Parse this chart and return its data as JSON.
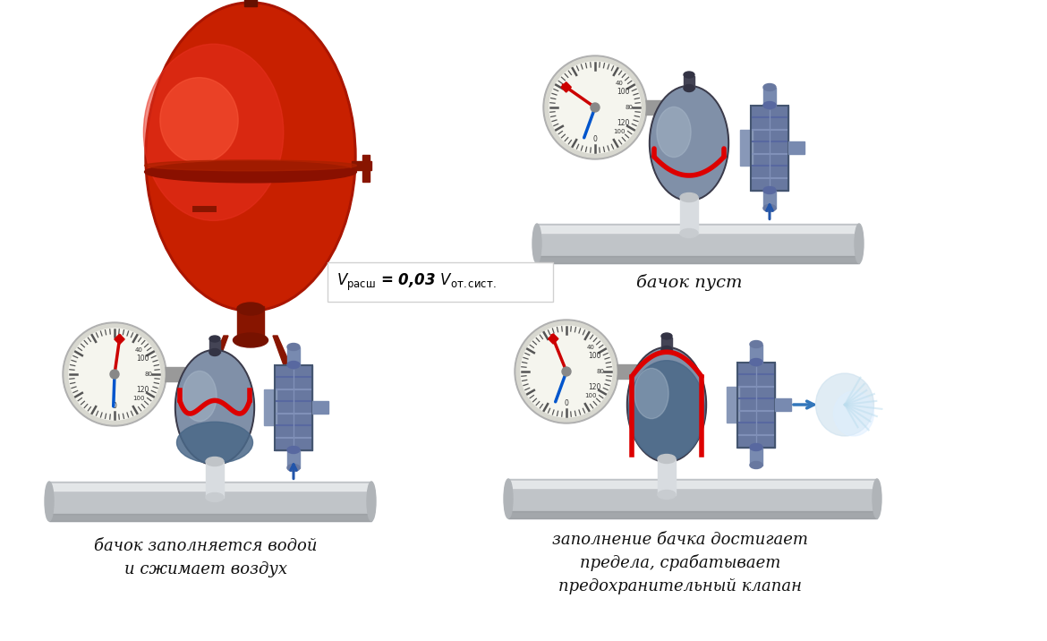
{
  "bg_color": "#ffffff",
  "label_top_right": "бачок пуст",
  "label_bot_left_1": "бачок заполняется водой",
  "label_bot_left_2": "и сжимает воздух",
  "label_bot_right_1": "заполнение бачка достигает",
  "label_bot_right_2": "предела, срабатывает",
  "label_bot_right_3": "предохранительный клапан"
}
